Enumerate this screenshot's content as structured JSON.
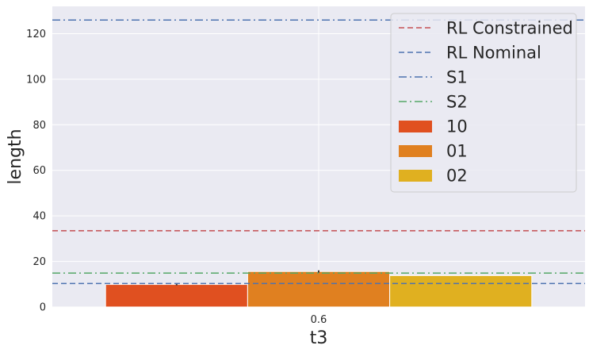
{
  "chart_data": {
    "type": "bar",
    "xlabel": "t3",
    "ylabel": "length",
    "categories": [
      "0.6"
    ],
    "ylim": [
      0,
      132
    ],
    "yticks": [
      0,
      20,
      40,
      60,
      80,
      100,
      120
    ],
    "grid": true,
    "legend_position": "top-right",
    "series": [
      {
        "name": "10",
        "values": [
          9.9
        ],
        "error": [
          0.4
        ],
        "color": "#e05020"
      },
      {
        "name": "01",
        "values": [
          15.6
        ],
        "error": [
          0.5
        ],
        "color": "#e08020"
      },
      {
        "name": "02",
        "values": [
          13.8
        ],
        "error": [
          0.0
        ],
        "color": "#e0b020"
      }
    ],
    "reference_lines": [
      {
        "name": "RL Constrained",
        "value": 33.5,
        "style": "dashed",
        "color": "#c44e52"
      },
      {
        "name": "RL Nominal",
        "value": 10.3,
        "style": "dashed",
        "color": "#4c72b0"
      },
      {
        "name": "S1",
        "value": 126,
        "style": "dashdot",
        "color": "#4c72b0"
      },
      {
        "name": "S2",
        "value": 14.9,
        "style": "dashdot",
        "color": "#55a868"
      }
    ]
  }
}
